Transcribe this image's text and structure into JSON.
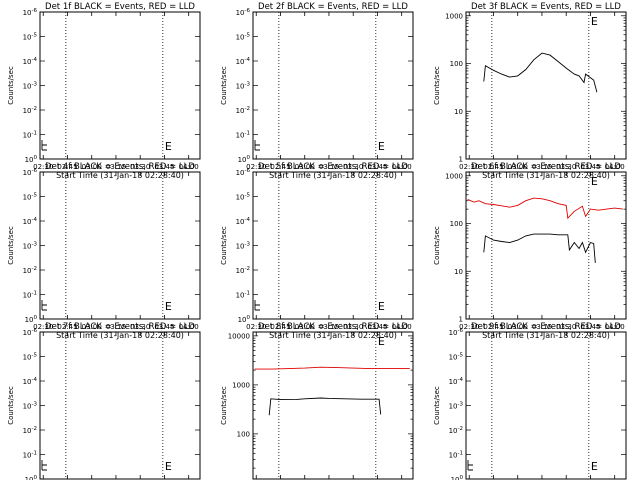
{
  "chart_data": [
    {
      "type": "line",
      "title": "Det 1f BLACK = Events, RED = LLD",
      "xlabel": "Start Time (31-Jan-18 02:28:40)",
      "ylabel": "Counts/sec",
      "scale": "log",
      "ylim": [
        1,
        1000000
      ],
      "ytick_labels": [
        "10^0",
        "10^-1",
        "10^-2",
        "10^-3",
        "10^-4",
        "10^-5",
        "10^-6"
      ],
      "xlim": [
        "02:28",
        "04:07"
      ],
      "xticks": [
        "02:30",
        "02:45",
        "03:00",
        "03:15",
        "03:30",
        "03:45",
        "04:00"
      ],
      "markers": [
        {
          "time": "02:44",
          "label": ""
        },
        {
          "time": "03:44",
          "label": "E"
        }
      ],
      "series": []
    },
    {
      "type": "line",
      "title": "Det 2f BLACK = Events, RED = LLD",
      "xlabel": "Start Time (31-Jan-18 02:28:40)",
      "ylabel": "Counts/sec",
      "scale": "log",
      "ylim": [
        1,
        1000000
      ],
      "ytick_labels": [
        "10^0",
        "10^-1",
        "10^-2",
        "10^-3",
        "10^-4",
        "10^-5",
        "10^-6"
      ],
      "xlim": [
        "02:28",
        "04:07"
      ],
      "xticks": [
        "02:30",
        "02:45",
        "03:00",
        "03:15",
        "03:30",
        "03:45",
        "04:00"
      ],
      "markers": [
        {
          "time": "02:44",
          "label": ""
        },
        {
          "time": "03:44",
          "label": "E"
        }
      ],
      "series": []
    },
    {
      "type": "line",
      "title": "Det 3f BLACK = Events, RED = LLD",
      "xlabel": "Start Time (31-Jan-18 02:28:40)",
      "ylabel": "Counts/sec",
      "scale": "log",
      "ylim": [
        1,
        1200
      ],
      "yticks": [
        1,
        10,
        100,
        1000
      ],
      "ytick_labels": [
        "1",
        "10",
        "100",
        "1000"
      ],
      "xlim": [
        "02:28",
        "04:07"
      ],
      "xticks": [
        "02:30",
        "02:45",
        "03:00",
        "03:15",
        "03:30",
        "03:45",
        "04:00"
      ],
      "markers": [
        {
          "time": "02:44",
          "label": ""
        },
        {
          "time": "03:44",
          "label": "E"
        }
      ],
      "series": [
        {
          "color": "#000000",
          "points": [
            [
              "02:39",
              42
            ],
            [
              "02:40",
              90
            ],
            [
              "02:45",
              72
            ],
            [
              "02:50",
              60
            ],
            [
              "02:55",
              52
            ],
            [
              "03:00",
              55
            ],
            [
              "03:05",
              75
            ],
            [
              "03:10",
              120
            ],
            [
              "03:15",
              165
            ],
            [
              "03:20",
              150
            ],
            [
              "03:25",
              110
            ],
            [
              "03:30",
              80
            ],
            [
              "03:35",
              60
            ],
            [
              "03:38",
              55
            ],
            [
              "03:41",
              40
            ],
            [
              "03:42",
              60
            ],
            [
              "03:47",
              45
            ],
            [
              "03:49",
              25
            ]
          ]
        }
      ]
    },
    {
      "type": "line",
      "title": "Det 4f BLACK = Events, RED = LLD",
      "xlabel": "Start Time (31-Jan-18 02:28:40)",
      "ylabel": "Counts/sec",
      "scale": "log",
      "ylim": [
        1,
        1000000
      ],
      "ytick_labels": [
        "10^0",
        "10^-1",
        "10^-2",
        "10^-3",
        "10^-4",
        "10^-5",
        "10^-6"
      ],
      "xlim": [
        "02:28",
        "04:07"
      ],
      "xticks": [
        "02:30",
        "02:45",
        "03:00",
        "03:15",
        "03:30",
        "03:45",
        "04:00"
      ],
      "markers": [
        {
          "time": "02:44",
          "label": ""
        },
        {
          "time": "03:44",
          "label": "E"
        }
      ],
      "series": []
    },
    {
      "type": "line",
      "title": "Det 5f BLACK = Events, RED = LLD",
      "xlabel": "Start Time (31-Jan-18 02:28:40)",
      "ylabel": "Counts/sec",
      "scale": "log",
      "ylim": [
        1,
        1000000
      ],
      "ytick_labels": [
        "10^0",
        "10^-1",
        "10^-2",
        "10^-3",
        "10^-4",
        "10^-5",
        "10^-6"
      ],
      "xlim": [
        "02:28",
        "04:07"
      ],
      "xticks": [
        "02:30",
        "02:45",
        "03:00",
        "03:15",
        "03:30",
        "03:45",
        "04:00"
      ],
      "markers": [
        {
          "time": "02:44",
          "label": ""
        },
        {
          "time": "03:44",
          "label": "E"
        }
      ],
      "series": []
    },
    {
      "type": "line",
      "title": "Det 6f BLACK = Events, RED = LLD",
      "xlabel": "Start Time (31-Jan-18 02:28:40)",
      "ylabel": "Counts/sec",
      "scale": "log",
      "ylim": [
        1,
        1200
      ],
      "yticks": [
        1,
        10,
        100,
        1000
      ],
      "ytick_labels": [
        "1",
        "10",
        "100",
        "1000"
      ],
      "xlim": [
        "02:28",
        "04:07"
      ],
      "xticks": [
        "02:30",
        "02:45",
        "03:00",
        "03:15",
        "03:30",
        "03:45",
        "04:00"
      ],
      "markers": [
        {
          "time": "02:44",
          "label": ""
        },
        {
          "time": "03:44",
          "label": "E"
        }
      ],
      "series": [
        {
          "color": "#000000",
          "points": [
            [
              "02:39",
              25
            ],
            [
              "02:40",
              55
            ],
            [
              "02:45",
              45
            ],
            [
              "02:50",
              42
            ],
            [
              "02:55",
              40
            ],
            [
              "03:00",
              45
            ],
            [
              "03:05",
              55
            ],
            [
              "03:10",
              60
            ],
            [
              "03:15",
              60
            ],
            [
              "03:20",
              60
            ],
            [
              "03:25",
              58
            ],
            [
              "03:31",
              58
            ],
            [
              "03:32",
              28
            ],
            [
              "03:35",
              40
            ],
            [
              "03:38",
              30
            ],
            [
              "03:40",
              40
            ],
            [
              "03:42",
              25
            ],
            [
              "03:45",
              40
            ],
            [
              "03:47",
              38
            ],
            [
              "03:48",
              15
            ]
          ]
        },
        {
          "color": "#e00000",
          "points": [
            [
              "02:29",
              320
            ],
            [
              "02:33",
              280
            ],
            [
              "02:36",
              300
            ],
            [
              "02:40",
              260
            ],
            [
              "02:45",
              250
            ],
            [
              "02:50",
              235
            ],
            [
              "02:55",
              220
            ],
            [
              "03:00",
              240
            ],
            [
              "03:05",
              300
            ],
            [
              "03:10",
              340
            ],
            [
              "03:15",
              330
            ],
            [
              "03:20",
              300
            ],
            [
              "03:25",
              260
            ],
            [
              "03:30",
              240
            ],
            [
              "03:31",
              130
            ],
            [
              "03:35",
              180
            ],
            [
              "03:40",
              230
            ],
            [
              "03:42",
              140
            ],
            [
              "03:45",
              200
            ],
            [
              "03:50",
              190
            ],
            [
              "03:55",
              200
            ],
            [
              "04:00",
              210
            ],
            [
              "04:05",
              200
            ]
          ]
        }
      ]
    },
    {
      "type": "line",
      "title": "Det 7f BLACK = Events, RED = LLD",
      "xlabel": "Start Time (31-Jan-18 02:28:40)",
      "ylabel": "Counts/sec",
      "scale": "log",
      "ylim": [
        1,
        1000000
      ],
      "ytick_labels": [
        "10^0",
        "10^-1",
        "10^-2",
        "10^-3",
        "10^-4",
        "10^-5",
        "10^-6"
      ],
      "xlim": [
        "02:28",
        "04:07"
      ],
      "xticks": [
        "02:30",
        "02:45",
        "03:00",
        "03:15",
        "03:30",
        "03:45",
        "04:00"
      ],
      "markers": [
        {
          "time": "02:44",
          "label": ""
        },
        {
          "time": "03:44",
          "label": "E"
        }
      ],
      "series": []
    },
    {
      "type": "line",
      "title": "Det 8f BLACK = Events, RED = LLD",
      "xlabel": "Start Time (31-Jan-18 02:28:40)",
      "ylabel": "Counts/sec",
      "scale": "log",
      "ylim": [
        12,
        12000
      ],
      "yticks": [
        100,
        1000,
        10000
      ],
      "ytick_labels": [
        "100",
        "1000",
        "10000"
      ],
      "xlim": [
        "02:28",
        "04:07"
      ],
      "xticks": [
        "02:30",
        "02:45",
        "03:00",
        "03:15",
        "03:30",
        "03:45",
        "04:00"
      ],
      "markers": [
        {
          "time": "02:44",
          "label": ""
        },
        {
          "time": "03:44",
          "label": "E"
        }
      ],
      "series": [
        {
          "color": "#000000",
          "points": [
            [
              "02:38",
              240
            ],
            [
              "02:39",
              520
            ],
            [
              "02:45",
              500
            ],
            [
              "02:55",
              505
            ],
            [
              "03:00",
              520
            ],
            [
              "03:10",
              540
            ],
            [
              "03:15",
              530
            ],
            [
              "03:25",
              520
            ],
            [
              "03:35",
              510
            ],
            [
              "03:46",
              510
            ],
            [
              "03:47",
              250
            ]
          ]
        },
        {
          "color": "#e00000",
          "points": [
            [
              "02:29",
              2100
            ],
            [
              "02:40",
              2100
            ],
            [
              "02:50",
              2150
            ],
            [
              "03:00",
              2200
            ],
            [
              "03:10",
              2300
            ],
            [
              "03:20",
              2250
            ],
            [
              "03:30",
              2200
            ],
            [
              "03:40",
              2150
            ],
            [
              "03:50",
              2150
            ],
            [
              "04:00",
              2150
            ],
            [
              "04:05",
              2150
            ]
          ]
        }
      ]
    },
    {
      "type": "line",
      "title": "Det 9f BLACK = Events, RED = LLD",
      "xlabel": "Start Time (31-Jan-18 02:28:40)",
      "ylabel": "Counts/sec",
      "scale": "log",
      "ylim": [
        1,
        1000000
      ],
      "ytick_labels": [
        "10^0",
        "10^-1",
        "10^-2",
        "10^-3",
        "10^-4",
        "10^-5",
        "10^-6"
      ],
      "xlim": [
        "02:28",
        "04:07"
      ],
      "xticks": [
        "02:30",
        "02:45",
        "03:00",
        "03:15",
        "03:30",
        "03:45",
        "04:00"
      ],
      "markers": [
        {
          "time": "02:44",
          "label": ""
        },
        {
          "time": "03:44",
          "label": "E"
        }
      ],
      "series": []
    }
  ]
}
